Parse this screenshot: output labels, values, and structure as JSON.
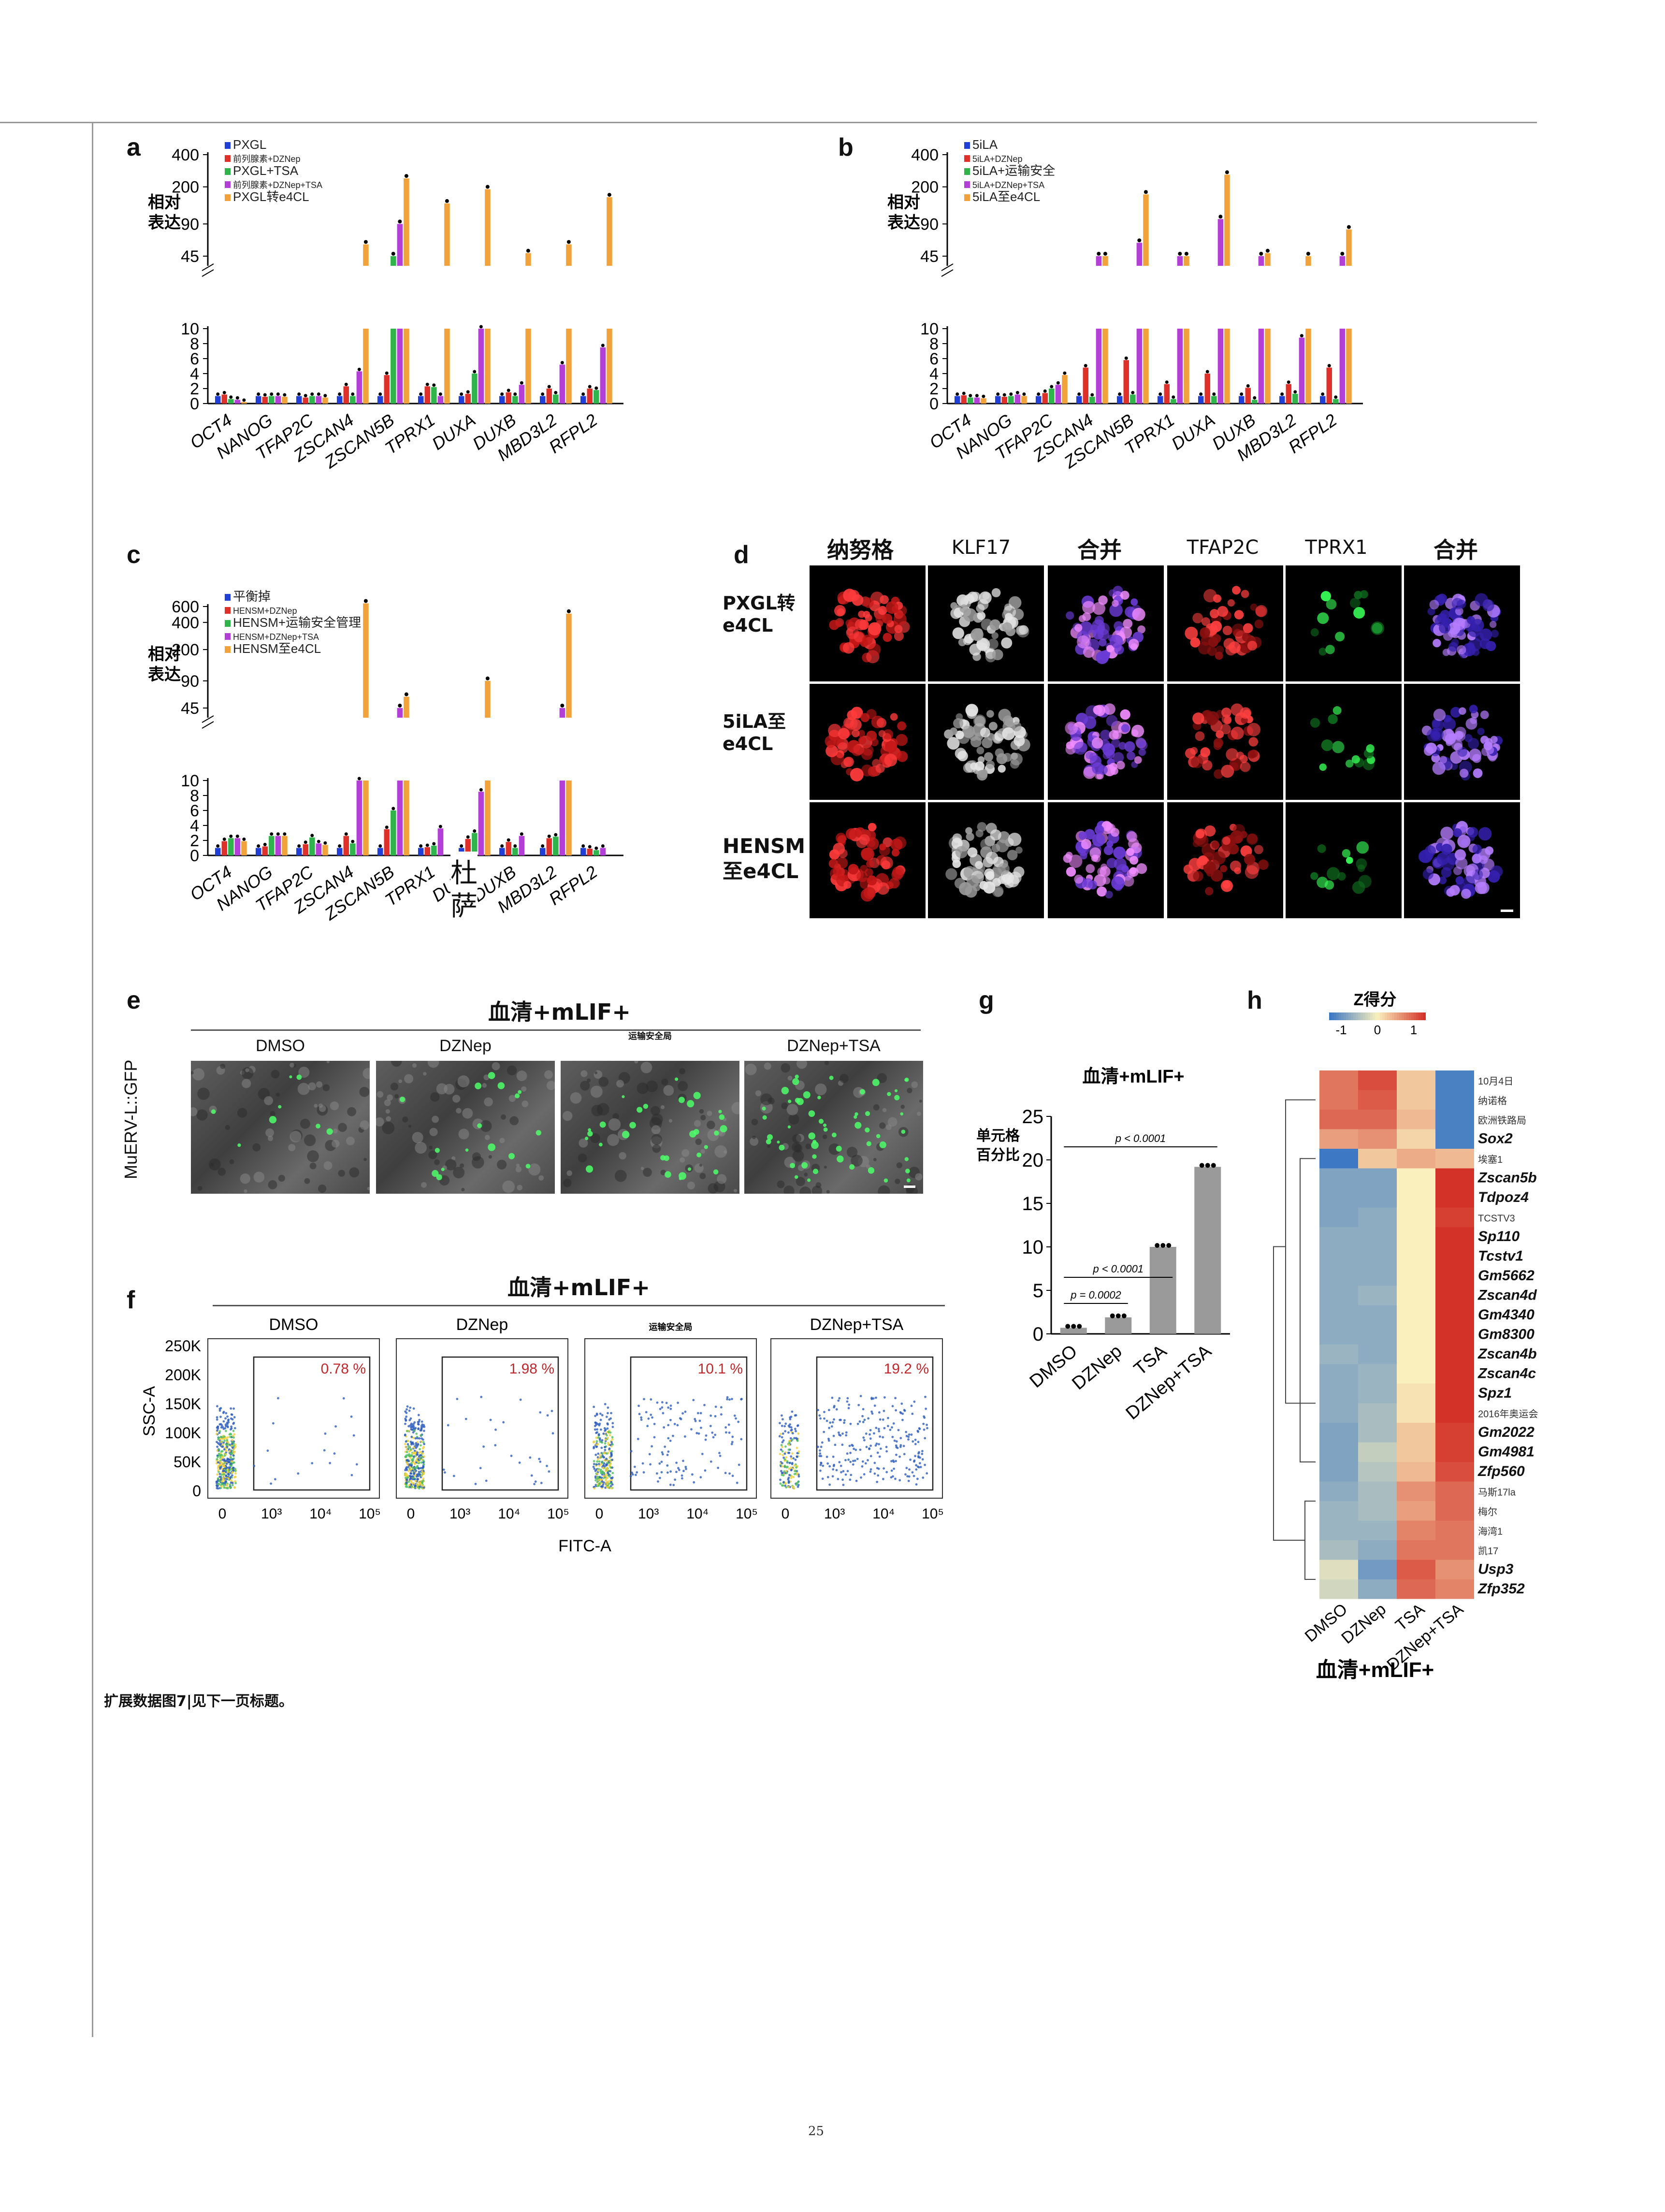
{
  "page_number": "25",
  "caption": "扩展数据图7|见下一页标题。",
  "panels": {
    "a": {
      "letter": "a",
      "ylabel_line1": "相对",
      "ylabel_line2": "表达",
      "legend": [
        "PXGL",
        "前列腺素+DZNep",
        "PXGL+TSA",
        "前列腺素+DZNep+TSA",
        "PXGL转e4CL"
      ]
    },
    "b": {
      "letter": "b",
      "ylabel_line1": "相对",
      "ylabel_line2": "表达",
      "legend": [
        "5iLA",
        "5iLA+DZNep",
        "5iLA+运输安全",
        "5iLA+DZNep+TSA",
        "5iLA至e4CL"
      ]
    },
    "c": {
      "letter": "c",
      "ylabel_line1": "相对",
      "ylabel_line2": "表达",
      "legend": [
        "平衡掉",
        "HENSM+DZNep",
        "HENSM+运输安全管理",
        "HENSM+DZNep+TSA",
        "HENSM至e4CL"
      ],
      "overlay_text_1": "杜",
      "overlay_text_2": "萨"
    },
    "d": {
      "letter": "d",
      "columns": [
        "纳努格",
        "KLF17",
        "合并",
        "TFAP2C",
        "TPRX1",
        "合并"
      ],
      "rows": [
        [
          "PXGL转",
          "e4CL"
        ],
        [
          "5iLA至",
          "e4CL"
        ],
        [
          "HENSM",
          "至e4CL"
        ]
      ]
    },
    "e": {
      "letter": "e",
      "title": "血清+mLIF+",
      "ylabel": "MuERV-L::GFP",
      "conditions": [
        "DMSO",
        "DZNep",
        "运输安全局",
        "DZNep+TSA"
      ]
    },
    "f": {
      "letter": "f",
      "title": "血清+mLIF+",
      "conditions": [
        "DMSO",
        "DZNep",
        "运输安全局",
        "DZNep+TSA"
      ],
      "percents": [
        "0.78 %",
        "1.98 %",
        "10.1 %",
        "19.2 %"
      ],
      "ylabel": "SSC-A",
      "xlabel": "FITC-A",
      "yticks": [
        "250K",
        "200K",
        "150K",
        "100K",
        "50K",
        "0"
      ],
      "xticks": [
        "0",
        "10³",
        "10⁴",
        "10⁵"
      ]
    },
    "g": {
      "letter": "g",
      "title": "血清+mLIF+",
      "ylabel_line1": "单元格",
      "ylabel_line2": "百分比"
    },
    "h": {
      "letter": "h",
      "scale_title": "Z得分",
      "scale_ticks": [
        "-1",
        "0",
        "1"
      ],
      "footer": "血清+mLIF+",
      "columns": [
        "DMSO",
        "DZNep",
        "TSA",
        "DZNep+TSA"
      ],
      "genes": [
        "10月4日",
        "纳诺格",
        "欧洲铁路局",
        "Sox2",
        "埃塞1",
        "Zscan5b",
        "Tdpoz4",
        "TCSTV3",
        "Sp110",
        "Tcstv1",
        "Gm5662",
        "Zscan4d",
        "Gm4340",
        "Gm8300",
        "Zscan4b",
        "Zscan4c",
        "Spz1",
        "2016年奥运会",
        "Gm2022",
        "Gm4981",
        "Zfp560",
        "马斯17la",
        "梅尔",
        "海湾1",
        "凯17",
        "Usp3",
        "Zfp352"
      ]
    }
  },
  "chart_data": [
    {
      "panel": "a",
      "type": "bar",
      "log_upper_axis": true,
      "categories": [
        "OCT4",
        "NANOG",
        "TFAP2C",
        "ZSCAN4",
        "ZSCAN5B",
        "TPRX1",
        "DUXA",
        "DUXB",
        "MBD3L2",
        "RFPL2"
      ],
      "series": [
        {
          "name": "PXGL",
          "color": "#1f3fd6",
          "values": [
            1,
            1,
            1,
            1,
            1,
            1,
            1,
            1,
            1,
            1
          ]
        },
        {
          "name": "前列腺素+DZNep",
          "color": "#e0302a",
          "values": [
            1.2,
            0.9,
            0.8,
            2.3,
            3.8,
            2.3,
            1.3,
            1.5,
            2.0,
            2.0
          ]
        },
        {
          "name": "PXGL+TSA",
          "color": "#2fb34a",
          "values": [
            0.6,
            1.0,
            1.0,
            1.0,
            20,
            2.2,
            4.0,
            1.0,
            1.2,
            1.8
          ]
        },
        {
          "name": "前列腺素+DZNep+TSA",
          "color": "#b23fd6",
          "values": [
            0.5,
            1.0,
            1.0,
            4.3,
            90,
            1.0,
            10,
            2.5,
            5.2,
            7.5
          ]
        },
        {
          "name": "PXGL转e4CL",
          "color": "#f2a23a",
          "values": [
            0.2,
            0.9,
            0.8,
            58,
            240,
            140,
            190,
            48,
            58,
            160
          ]
        }
      ],
      "yticks_lower": [
        0,
        2,
        4,
        6,
        8,
        10
      ],
      "yticks_upper": [
        45,
        90,
        200,
        400
      ]
    },
    {
      "panel": "b",
      "type": "bar",
      "log_upper_axis": true,
      "categories": [
        "OCT4",
        "NANOG",
        "TFAP2C",
        "ZSCAN4",
        "ZSCAN5B",
        "TPRX1",
        "DUXA",
        "DUXB",
        "MBD3L2",
        "RFPL2"
      ],
      "series": [
        {
          "name": "5iLA",
          "color": "#1f3fd6",
          "values": [
            1,
            1,
            1,
            1,
            1,
            1,
            1,
            1,
            1,
            1
          ]
        },
        {
          "name": "5iLA+DZNep",
          "color": "#e0302a",
          "values": [
            1.1,
            0.9,
            1.4,
            4.8,
            5.8,
            2.6,
            4.0,
            2.1,
            2.6,
            4.8
          ]
        },
        {
          "name": "5iLA+运输安全",
          "color": "#2fb34a",
          "values": [
            0.8,
            1.0,
            2.0,
            0.9,
            1.2,
            0.6,
            1.0,
            0.5,
            1.3,
            0.6
          ]
        },
        {
          "name": "5iLA+DZNep+TSA",
          "color": "#b23fd6",
          "values": [
            0.8,
            1.2,
            2.5,
            30,
            60,
            30,
            100,
            40,
            8.8,
            35
          ]
        },
        {
          "name": "5iLA至e4CL",
          "color": "#f2a23a",
          "values": [
            0.7,
            1.0,
            3.8,
            45,
            170,
            45,
            260,
            48,
            45,
            80
          ]
        }
      ],
      "yticks_lower": [
        0,
        2,
        4,
        6,
        8,
        10
      ],
      "yticks_upper": [
        45,
        90,
        200,
        400
      ]
    },
    {
      "panel": "c",
      "type": "bar",
      "log_upper_axis": true,
      "categories": [
        "OCT4",
        "NANOG",
        "TFAP2C",
        "ZSCAN4",
        "ZSCAN5B",
        "TPRX1",
        "DUXA",
        "DUXB",
        "MBD3L2",
        "RFPL2"
      ],
      "series": [
        {
          "name": "平衡掉",
          "color": "#1f3fd6",
          "values": [
            1,
            1,
            1,
            1,
            1,
            1,
            1,
            1,
            1,
            1
          ]
        },
        {
          "name": "HENSM+DZNep",
          "color": "#e0302a",
          "values": [
            1.9,
            1.2,
            1.5,
            2.6,
            3.5,
            1.1,
            2.2,
            1.8,
            2.3,
            0.9
          ]
        },
        {
          "name": "HENSM+运输安全管理",
          "color": "#2fb34a",
          "values": [
            2.3,
            2.6,
            2.4,
            1.6,
            6.0,
            1.3,
            3.0,
            1.0,
            2.5,
            0.7
          ]
        },
        {
          "name": "HENSM+DZNep+TSA",
          "color": "#b23fd6",
          "values": [
            2.3,
            2.6,
            1.6,
            10,
            40,
            3.6,
            8.5,
            2.6,
            35,
            1.0
          ]
        },
        {
          "name": "HENSM至e4CL",
          "color": "#f2a23a",
          "values": [
            1.9,
            2.6,
            1.4,
            650,
            60,
            0,
            90,
            0,
            500,
            0
          ]
        }
      ],
      "yticks_lower": [
        0,
        2,
        4,
        6,
        8,
        10
      ],
      "yticks_upper": [
        45,
        90,
        200,
        400,
        600
      ]
    },
    {
      "panel": "g",
      "type": "bar",
      "categories": [
        "DMSO",
        "DZNep",
        "TSA",
        "DZNep+TSA"
      ],
      "values": [
        0.7,
        1.9,
        10.0,
        19.2
      ],
      "ylim": [
        0,
        25
      ],
      "yticks": [
        0,
        5,
        10,
        15,
        20,
        25
      ],
      "annotations": [
        "p = 0.0002",
        "p < 0.0001",
        "p < 0.0001"
      ],
      "color": "#9a9a9a"
    },
    {
      "panel": "h",
      "type": "heatmap",
      "columns": [
        "DMSO",
        "DZNep",
        "TSA",
        "DZNep+TSA"
      ],
      "rows": [
        "10月4日",
        "纳诺格",
        "欧洲铁路局",
        "Sox2",
        "埃塞1",
        "Zscan5b",
        "Tdpoz4",
        "TCSTV3",
        "Sp110",
        "Tcstv1",
        "Gm5662",
        "Zscan4d",
        "Gm4340",
        "Gm8300",
        "Zscan4b",
        "Zscan4c",
        "Spz1",
        "2016年奥运会",
        "Gm2022",
        "Gm4981",
        "Zfp560",
        "马斯17la",
        "梅尔",
        "海湾1",
        "凯17",
        "Usp3",
        "Zfp352"
      ],
      "z": [
        [
          0.9,
          1.2,
          0.3,
          -1.3
        ],
        [
          0.9,
          1.1,
          0.3,
          -1.3
        ],
        [
          1.0,
          1.0,
          0.4,
          -1.3
        ],
        [
          0.6,
          0.7,
          0.2,
          -1.3
        ],
        [
          -1.4,
          0.3,
          0.5,
          0.4
        ],
        [
          -0.9,
          -0.9,
          0.0,
          1.4
        ],
        [
          -0.9,
          -0.9,
          0.0,
          1.4
        ],
        [
          -0.9,
          -0.8,
          0.0,
          1.3
        ],
        [
          -0.8,
          -0.8,
          0.0,
          1.4
        ],
        [
          -0.8,
          -0.8,
          0.0,
          1.4
        ],
        [
          -0.8,
          -0.8,
          0.0,
          1.4
        ],
        [
          -0.8,
          -0.7,
          0.0,
          1.4
        ],
        [
          -0.8,
          -0.8,
          0.0,
          1.4
        ],
        [
          -0.8,
          -0.8,
          0.0,
          1.4
        ],
        [
          -0.7,
          -0.8,
          0.0,
          1.4
        ],
        [
          -0.8,
          -0.7,
          0.0,
          1.4
        ],
        [
          -0.8,
          -0.7,
          0.1,
          1.4
        ],
        [
          -0.8,
          -0.6,
          0.1,
          1.4
        ],
        [
          -0.9,
          -0.6,
          0.3,
          1.3
        ],
        [
          -0.9,
          -0.4,
          0.3,
          1.3
        ],
        [
          -0.9,
          -0.5,
          0.4,
          1.2
        ],
        [
          -0.8,
          -0.6,
          0.7,
          1.0
        ],
        [
          -0.7,
          -0.6,
          0.6,
          1.0
        ],
        [
          -0.7,
          -0.7,
          0.8,
          0.9
        ],
        [
          -0.6,
          -0.8,
          0.9,
          0.9
        ],
        [
          -0.2,
          -1.0,
          1.1,
          0.7
        ],
        [
          -0.3,
          -0.8,
          1.0,
          0.8
        ]
      ],
      "scale": [
        -1,
        0,
        1
      ]
    }
  ]
}
